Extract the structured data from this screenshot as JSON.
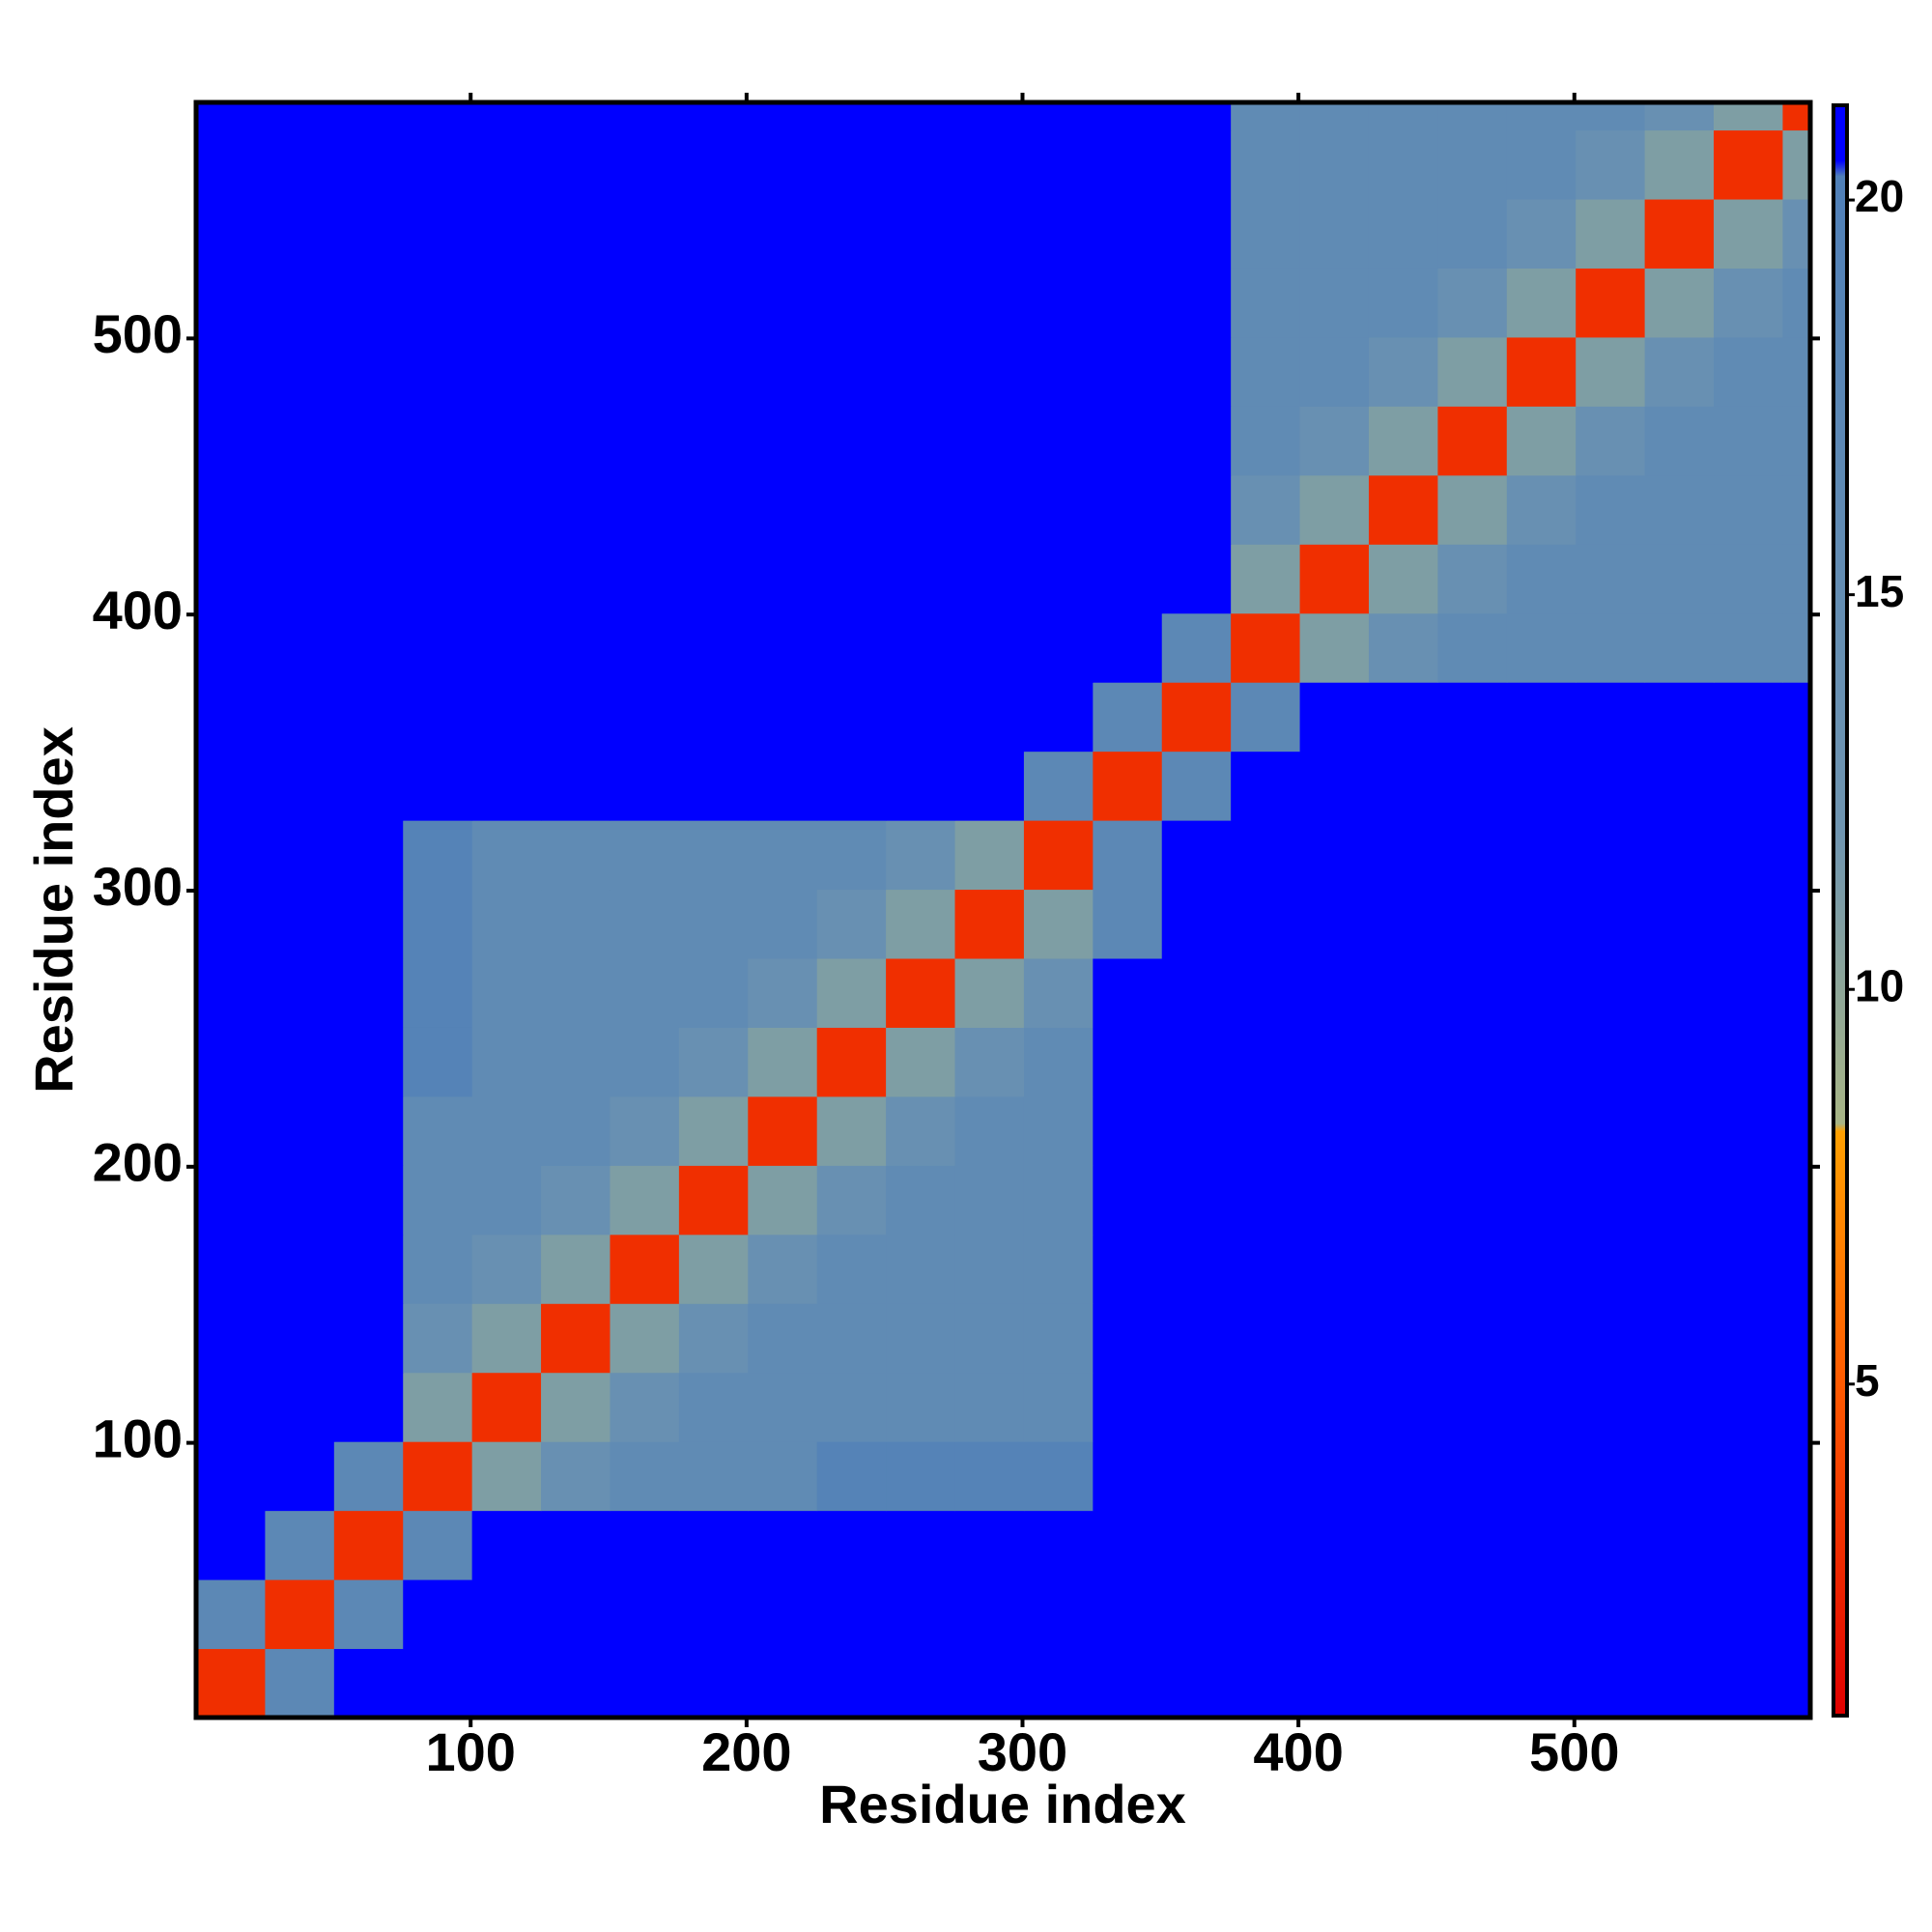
{
  "chart_data": {
    "type": "heatmap",
    "xlabel": "Residue index",
    "ylabel": "Residue index",
    "xlim": [
      0.5,
      585.5
    ],
    "ylim": [
      0.5,
      585.5
    ],
    "xticks": [
      100,
      200,
      300,
      400,
      500
    ],
    "yticks": [
      100,
      200,
      300,
      400,
      500
    ],
    "xbins": [
      0.5,
      25.5,
      50.5,
      75.5,
      100.5,
      125.5,
      150.5,
      175.5,
      200.5,
      225.5,
      250.5,
      275.5,
      300.5,
      325.5,
      350.5,
      375.5,
      400.5,
      425.5,
      450.5,
      475.5,
      500.5,
      525.5,
      550.5,
      575.5,
      585.5
    ],
    "ybins": [
      0.5,
      25.5,
      50.5,
      75.5,
      100.5,
      125.5,
      150.5,
      175.5,
      200.5,
      225.5,
      250.5,
      275.5,
      300.5,
      325.5,
      350.5,
      375.5,
      400.5,
      425.5,
      450.5,
      475.5,
      500.5,
      525.5,
      550.5,
      575.5,
      585.5
    ],
    "z": [
      [
        3,
        17,
        21,
        21,
        21,
        21,
        21,
        21,
        21,
        21,
        21,
        21,
        21,
        21,
        21,
        21,
        21,
        21,
        21,
        21,
        21,
        21,
        21,
        21
      ],
      [
        17,
        3,
        17,
        21,
        21,
        21,
        21,
        21,
        21,
        21,
        21,
        21,
        21,
        21,
        21,
        21,
        21,
        21,
        21,
        21,
        21,
        21,
        21,
        21
      ],
      [
        21,
        17,
        3,
        17,
        21,
        21,
        21,
        21,
        21,
        21,
        21,
        21,
        21,
        21,
        21,
        21,
        21,
        21,
        21,
        21,
        21,
        21,
        21,
        21
      ],
      [
        21,
        21,
        17,
        3,
        11,
        14,
        16,
        16,
        16,
        19,
        19,
        19,
        19,
        21,
        21,
        21,
        21,
        21,
        21,
        21,
        21,
        21,
        21,
        21
      ],
      [
        21,
        21,
        21,
        11,
        3,
        11,
        14,
        16,
        16,
        16,
        16,
        16,
        16,
        21,
        21,
        21,
        21,
        21,
        21,
        21,
        21,
        21,
        21,
        21
      ],
      [
        21,
        21,
        21,
        14,
        11,
        3,
        11,
        14,
        16,
        16,
        16,
        16,
        16,
        21,
        21,
        21,
        21,
        21,
        21,
        21,
        21,
        21,
        21,
        21
      ],
      [
        21,
        21,
        21,
        16,
        14,
        11,
        3,
        11,
        14,
        16,
        16,
        16,
        16,
        21,
        21,
        21,
        21,
        21,
        21,
        21,
        21,
        21,
        21,
        21
      ],
      [
        21,
        21,
        21,
        16,
        16,
        14,
        11,
        3,
        11,
        14,
        16,
        16,
        16,
        21,
        21,
        21,
        21,
        21,
        21,
        21,
        21,
        21,
        21,
        21
      ],
      [
        21,
        21,
        21,
        16,
        16,
        16,
        14,
        11,
        3,
        11,
        14,
        16,
        16,
        21,
        21,
        21,
        21,
        21,
        21,
        21,
        21,
        21,
        21,
        21
      ],
      [
        21,
        21,
        21,
        19,
        16,
        16,
        16,
        14,
        11,
        3,
        11,
        14,
        16,
        21,
        21,
        21,
        21,
        21,
        21,
        21,
        21,
        21,
        21,
        21
      ],
      [
        21,
        21,
        21,
        19,
        16,
        16,
        16,
        16,
        14,
        11,
        3,
        11,
        14,
        21,
        21,
        21,
        21,
        21,
        21,
        21,
        21,
        21,
        21,
        21
      ],
      [
        21,
        21,
        21,
        19,
        16,
        16,
        16,
        16,
        16,
        14,
        11,
        3,
        11,
        17,
        21,
        21,
        21,
        21,
        21,
        21,
        21,
        21,
        21,
        21
      ],
      [
        21,
        21,
        21,
        19,
        16,
        16,
        16,
        16,
        16,
        16,
        14,
        11,
        3,
        17,
        21,
        21,
        21,
        21,
        21,
        21,
        21,
        21,
        21,
        21
      ],
      [
        21,
        21,
        21,
        21,
        21,
        21,
        21,
        21,
        21,
        21,
        21,
        21,
        17,
        3,
        17,
        21,
        21,
        21,
        21,
        21,
        21,
        21,
        21,
        21
      ],
      [
        21,
        21,
        21,
        21,
        21,
        21,
        21,
        21,
        21,
        21,
        21,
        21,
        21,
        17,
        3,
        17,
        21,
        21,
        21,
        21,
        21,
        21,
        21,
        21
      ],
      [
        21,
        21,
        21,
        21,
        21,
        21,
        21,
        21,
        21,
        21,
        21,
        21,
        21,
        21,
        17,
        3,
        11,
        14,
        16,
        16,
        16,
        16,
        16,
        16
      ],
      [
        21,
        21,
        21,
        21,
        21,
        21,
        21,
        21,
        21,
        21,
        21,
        21,
        21,
        21,
        21,
        11,
        3,
        11,
        14,
        16,
        16,
        16,
        16,
        16
      ],
      [
        21,
        21,
        21,
        21,
        21,
        21,
        21,
        21,
        21,
        21,
        21,
        21,
        21,
        21,
        21,
        14,
        11,
        3,
        11,
        14,
        16,
        16,
        16,
        16
      ],
      [
        21,
        21,
        21,
        21,
        21,
        21,
        21,
        21,
        21,
        21,
        21,
        21,
        21,
        21,
        21,
        16,
        14,
        11,
        3,
        11,
        14,
        16,
        16,
        16
      ],
      [
        21,
        21,
        21,
        21,
        21,
        21,
        21,
        21,
        21,
        21,
        21,
        21,
        21,
        21,
        21,
        16,
        16,
        14,
        11,
        3,
        11,
        14,
        16,
        16
      ],
      [
        21,
        21,
        21,
        21,
        21,
        21,
        21,
        21,
        21,
        21,
        21,
        21,
        21,
        21,
        21,
        16,
        16,
        16,
        14,
        11,
        3,
        11,
        14,
        16
      ],
      [
        21,
        21,
        21,
        21,
        21,
        21,
        21,
        21,
        21,
        21,
        21,
        21,
        21,
        21,
        21,
        16,
        16,
        16,
        16,
        14,
        11,
        3,
        11,
        14
      ],
      [
        21,
        21,
        21,
        21,
        21,
        21,
        21,
        21,
        21,
        21,
        21,
        21,
        21,
        21,
        21,
        16,
        16,
        16,
        16,
        16,
        14,
        11,
        3,
        11
      ],
      [
        21,
        21,
        21,
        21,
        21,
        21,
        21,
        21,
        21,
        21,
        21,
        21,
        21,
        21,
        21,
        16,
        16,
        16,
        16,
        16,
        16,
        14,
        11,
        3
      ]
    ],
    "colorscale": [
      [
        0.8,
        "#e00000"
      ],
      [
        5,
        "#ff5a00"
      ],
      [
        8.2,
        "#ffa000"
      ],
      [
        8.3,
        "#a8b585"
      ],
      [
        12,
        "#6f95b0"
      ],
      [
        20.3,
        "#5080b8"
      ],
      [
        20.5,
        "#0000ff"
      ],
      [
        21.2,
        "#0000ff"
      ]
    ],
    "colorbar": {
      "lim": [
        0.8,
        21.2
      ],
      "ticks": [
        5,
        10,
        15,
        20
      ]
    }
  }
}
